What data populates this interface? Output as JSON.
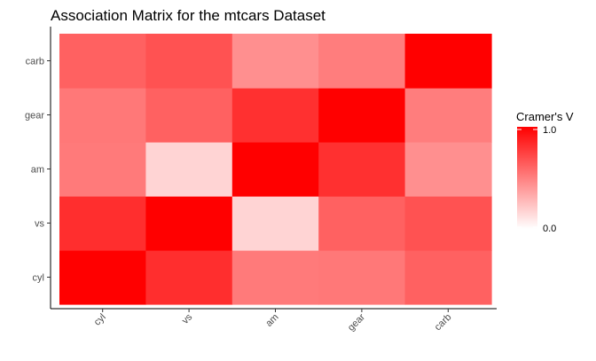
{
  "chart_data": {
    "type": "heatmap",
    "title": "Association Matrix for the mtcars Dataset",
    "xlabel": "",
    "ylabel": "",
    "x_categories": [
      "cyl",
      "vs",
      "am",
      "gear",
      "carb"
    ],
    "y_categories": [
      "cyl",
      "vs",
      "am",
      "gear",
      "carb"
    ],
    "values": [
      [
        1.0,
        0.82,
        0.52,
        0.53,
        0.62
      ],
      [
        0.82,
        1.0,
        0.17,
        0.62,
        0.68
      ],
      [
        0.52,
        0.17,
        1.0,
        0.81,
        0.44
      ],
      [
        0.53,
        0.62,
        0.81,
        1.0,
        0.51
      ],
      [
        0.62,
        0.68,
        0.44,
        0.51,
        1.0
      ]
    ],
    "value_range": [
      0,
      1
    ],
    "legend": {
      "title": "Cramer's V",
      "labels": [
        "1.0",
        "0.0"
      ],
      "position": "right",
      "color_high": "#ff0000",
      "color_low": "#ffffff"
    },
    "grid": false
  }
}
